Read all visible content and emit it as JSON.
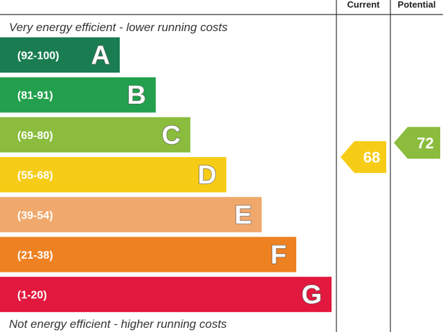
{
  "chart_data": {
    "type": "bar",
    "top_note": "Very energy efficient - lower running costs",
    "bottom_note": "Not energy efficient - higher running costs",
    "columns": {
      "current": "Current",
      "potential": "Potential"
    },
    "bands": [
      {
        "letter": "A",
        "range": "(92-100)",
        "min": 92,
        "max": 100,
        "color": "#1a7d52"
      },
      {
        "letter": "B",
        "range": "(81-91)",
        "min": 81,
        "max": 91,
        "color": "#23a04d"
      },
      {
        "letter": "C",
        "range": "(69-80)",
        "min": 69,
        "max": 80,
        "color": "#8bbc3e"
      },
      {
        "letter": "D",
        "range": "(55-68)",
        "min": 55,
        "max": 68,
        "color": "#f6cc17"
      },
      {
        "letter": "E",
        "range": "(39-54)",
        "min": 39,
        "max": 54,
        "color": "#f1a86c"
      },
      {
        "letter": "F",
        "range": "(21-38)",
        "min": 21,
        "max": 38,
        "color": "#ee8122"
      },
      {
        "letter": "G",
        "range": "(1-20)",
        "min": 1,
        "max": 20,
        "color": "#e2183e"
      }
    ],
    "ratings": {
      "current": {
        "value": 68,
        "label": "68",
        "band": "D",
        "color": "#f6cc17"
      },
      "potential": {
        "value": 72,
        "label": "72",
        "band": "C",
        "color": "#8bbc3e"
      }
    }
  }
}
